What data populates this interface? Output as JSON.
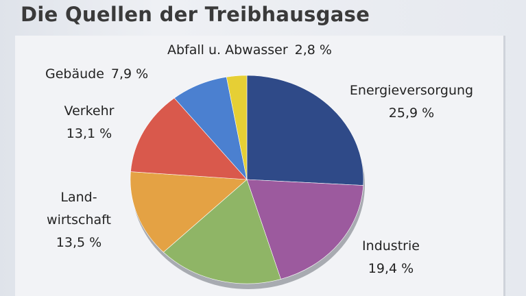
{
  "chart_data": {
    "type": "pie",
    "title": "Die Quellen der Treibhausgase",
    "categories": [
      "Energieversorgung",
      "Industrie",
      null,
      "Land-\nwirtschaft",
      "Verkehr",
      "Gebäude",
      "Abfall u. Abwasser"
    ],
    "values": [
      25.9,
      19.4,
      17.4,
      13.5,
      13.1,
      7.9,
      2.8
    ],
    "value_labels": [
      "25,9 %",
      "19,4 %",
      null,
      "13,5 %",
      "13,1 %",
      "7,9 %",
      "2,8 %"
    ],
    "colors": [
      "#2f4a88",
      "#9c5a9e",
      "#8fb566",
      "#e4a244",
      "#d9594c",
      "#4b80d0",
      "#e6cf35"
    ]
  }
}
